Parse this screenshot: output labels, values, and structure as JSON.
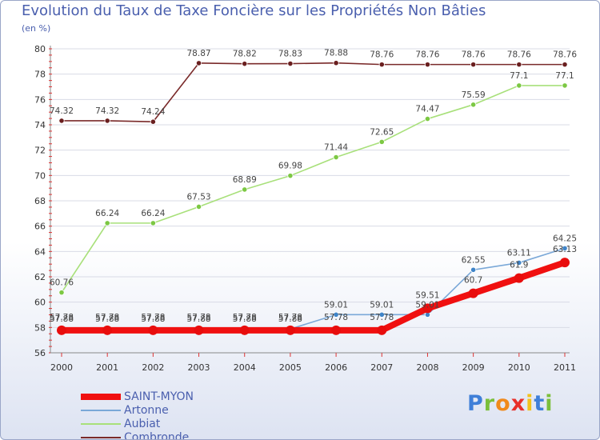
{
  "title": "Evolution du Taux de Taxe Foncière sur les Propriétés Non Bâties",
  "unit_label": "(en %)",
  "logo": {
    "text": "Proxiti",
    "letters": [
      {
        "ch": "P",
        "color": "#3f7fd8"
      },
      {
        "ch": "r",
        "color": "#7bbf3a"
      },
      {
        "ch": "o",
        "color": "#f08a1c"
      },
      {
        "ch": "x",
        "color": "#e8302a"
      },
      {
        "ch": "i",
        "color": "#f2c21b"
      },
      {
        "ch": "t",
        "color": "#3f7fd8"
      },
      {
        "ch": "i",
        "color": "#7bbf3a"
      }
    ]
  },
  "chart_data": {
    "type": "line",
    "title": "Evolution du Taux de Taxe Foncière sur les Propriétés Non Bâties",
    "ylabel": "(en %)",
    "xlabel": "",
    "categories": [
      "2000",
      "2001",
      "2002",
      "2003",
      "2004",
      "2005",
      "2006",
      "2007",
      "2008",
      "2009",
      "2010",
      "2011"
    ],
    "ylim": [
      56,
      80
    ],
    "yticks": [
      56,
      58,
      60,
      62,
      64,
      66,
      68,
      70,
      72,
      74,
      76,
      78,
      80
    ],
    "grid": "horizontal",
    "legend_position": "bottom-left",
    "series": [
      {
        "name": "Combronde",
        "color": "#7a2a2a",
        "marker": "#6a1f1f",
        "weight": "thin",
        "values": [
          74.32,
          74.32,
          74.24,
          78.87,
          78.82,
          78.83,
          78.88,
          78.76,
          78.76,
          78.76,
          78.76,
          78.76
        ],
        "labels": [
          "74.32",
          "74.32",
          "74.24",
          "78.87",
          "78.82",
          "78.83",
          "78.88",
          "78.76",
          "78.76",
          "78.76",
          "78.76",
          "78.76"
        ]
      },
      {
        "name": "Aubiat",
        "color": "#a8e07a",
        "marker": "#7cc843",
        "weight": "thin",
        "values": [
          60.76,
          66.24,
          66.24,
          67.53,
          68.89,
          69.98,
          71.44,
          72.65,
          74.47,
          75.59,
          77.1,
          77.1
        ],
        "labels": [
          "60.76",
          "66.24",
          "66.24",
          "67.53",
          "68.89",
          "69.98",
          "71.44",
          "72.65",
          "74.47",
          "75.59",
          "77.1",
          "77.1"
        ]
      },
      {
        "name": "Artonne",
        "color": "#7aa8d8",
        "marker": "#3f84c8",
        "weight": "thin",
        "values": [
          57.88,
          57.88,
          57.88,
          57.88,
          57.88,
          57.88,
          59.01,
          59.01,
          59.01,
          62.55,
          63.11,
          64.25
        ],
        "labels": [
          "57.88",
          "57.88",
          "57.88",
          "57.88",
          "57.88",
          "57.88",
          "59.01",
          "59.01",
          "59.01",
          "62.55",
          "63.11",
          "64.25"
        ]
      },
      {
        "name": "SAINT-MYON",
        "color": "#f01010",
        "marker": "#e80d0d",
        "weight": "thick",
        "values": [
          57.78,
          57.78,
          57.78,
          57.78,
          57.78,
          57.78,
          57.78,
          57.78,
          59.51,
          60.7,
          61.9,
          63.13
        ],
        "labels": [
          "57.78",
          "57.78",
          "57.78",
          "57.78",
          "57.78",
          "57.78",
          "57.78",
          "57.78",
          "59.51",
          "60.7",
          "61.9",
          "63.13"
        ]
      }
    ],
    "legend": [
      "SAINT-MYON",
      "Artonne",
      "Aubiat",
      "Combronde"
    ]
  }
}
